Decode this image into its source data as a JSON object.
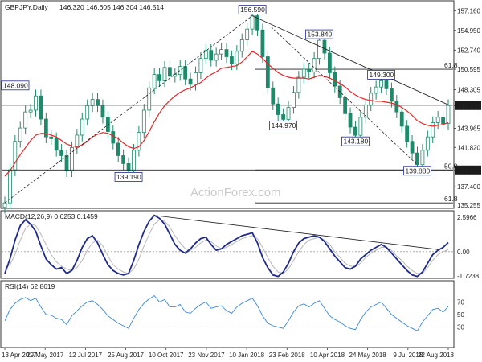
{
  "header": {
    "symbol": "GBPJPY,Daily",
    "ohlc": "146.320 146.605 146.304 146.514"
  },
  "watermark": "ActionForex.com",
  "colors": {
    "up_candle": "#1f8a6b",
    "down_candle": "#1f8a6b",
    "ma": "#e8262a",
    "trendline": "#222222",
    "fib": "#222222",
    "macd": "#1f2a8c",
    "signal": "#b7b7b7",
    "rsi": "#3a86d6",
    "label_border": "#1f2a8c",
    "price_tag_bg": "#1a1a1a",
    "price_tag_fg": "#ffffff"
  },
  "chart_data": [
    {
      "type": "line",
      "panel": "price",
      "ylim": [
        135.255,
        158.0
      ],
      "y_ticks": [
        137.4,
        139.29,
        141.82,
        143.965,
        146.514,
        148.305,
        150.595,
        152.74,
        154.95,
        157.16
      ],
      "y_tick_labels": [
        "137.400",
        "139.290",
        "141.820",
        "143.965",
        "146.514",
        "148.305",
        "150.595",
        "152.740",
        "154.950",
        "157.160"
      ],
      "y_bottom_label": "135.255",
      "x_labels": [
        "13 Apr 2017",
        "29 May 2017",
        "12 Jul 2017",
        "25 Aug 2017",
        "10 Oct 2017",
        "23 Nov 2017",
        "10 Jan 2018",
        "23 Feb 2018",
        "10 Apr 2018",
        "24 May 2018",
        "9 Jul 2018",
        "22 Aug 2018"
      ],
      "series": [
        {
          "name": "",
          "values": [
            135.6,
            139.3,
            142.5,
            144.0,
            145.8,
            146.0,
            147.6,
            145.0,
            143.0,
            142.8,
            141.5,
            140.9,
            139.2,
            141.8,
            143.2,
            145.0,
            146.5,
            147.2,
            146.5,
            145.2,
            143.6,
            142.3,
            140.9,
            140.0,
            139.2,
            141.5,
            143.5,
            146.0,
            148.5,
            150.0,
            149.3,
            150.8,
            149.8,
            150.0,
            150.9,
            149.5,
            148.9,
            150.2,
            151.8,
            152.7,
            151.6,
            152.3,
            152.8,
            152.0,
            151.2,
            152.6,
            153.9,
            155.1,
            156.59,
            155.0,
            152.0,
            148.5,
            146.7,
            145.5,
            144.97,
            146.3,
            148.0,
            149.7,
            150.6,
            150.3,
            151.8,
            153.84,
            152.4,
            150.2,
            148.7,
            147.4,
            145.6,
            144.1,
            143.18,
            145.2,
            146.6,
            147.9,
            148.6,
            149.3,
            148.4,
            147.0,
            145.8,
            144.2,
            142.5,
            141.2,
            139.88,
            141.5,
            143.0,
            144.6,
            145.2,
            144.5,
            146.514
          ]
        },
        {
          "name": "",
          "values": [
            138.6,
            139.2,
            140.1,
            141.0,
            141.8,
            142.6,
            143.2,
            143.4,
            143.4,
            143.2,
            143.0,
            142.6,
            142.2,
            142.0,
            141.9,
            142.1,
            142.5,
            143.0,
            143.3,
            143.5,
            143.4,
            143.1,
            142.8,
            142.3,
            141.9,
            141.7,
            141.9,
            142.6,
            143.6,
            144.7,
            145.7,
            146.5,
            147.1,
            147.6,
            148.0,
            148.3,
            148.5,
            148.8,
            149.1,
            149.6,
            150.0,
            150.3,
            150.7,
            150.8,
            150.9,
            151.0,
            151.4,
            152.0,
            152.6,
            152.3,
            151.8,
            151.2,
            150.7,
            150.2,
            149.9,
            149.7,
            149.6,
            149.6,
            149.6,
            149.5,
            149.7,
            149.9,
            149.8,
            149.6,
            149.3,
            149.0,
            148.6,
            148.1,
            147.7,
            147.4,
            147.2,
            147.1,
            147.0,
            147.0,
            146.9,
            146.8,
            146.6,
            146.3,
            145.9,
            145.4,
            144.8,
            144.5,
            144.3,
            144.2,
            144.3,
            144.4,
            144.6
          ]
        }
      ],
      "annotations": [
        {
          "label": "156.590",
          "x_index": 48,
          "y": 156.59
        },
        {
          "label": "153.840",
          "x_index": 61,
          "y": 153.84
        },
        {
          "label": "149.300",
          "x_index": 73,
          "y": 149.3
        },
        {
          "label": "144.970",
          "x_index": 54,
          "y": 144.97
        },
        {
          "label": "143.180",
          "x_index": 68,
          "y": 143.18
        },
        {
          "label": "139.880",
          "x_index": 80,
          "y": 139.88
        },
        {
          "label": "139.190",
          "x_index": 24,
          "y": 139.19
        },
        {
          "label": "148.090",
          "x_index": 0,
          "y": 148.09
        }
      ],
      "fib_levels": [
        {
          "label": "61.8",
          "y": 150.595
        },
        {
          "label": "50.0",
          "y": 139.29
        },
        {
          "label": "61.8",
          "y": 135.6
        }
      ],
      "last_price_label": "146.514",
      "support_label": "139.290"
    },
    {
      "type": "line",
      "panel": "macd",
      "title": "MACD(12,26,9) 0.6253 0.1459",
      "ylim": [
        -1.7238,
        2.5966
      ],
      "y_tick_labels": [
        "2.5966",
        "0.00",
        "-1.7238"
      ],
      "series": [
        {
          "name": "",
          "values": [
            -1.5,
            -0.5,
            0.8,
            1.8,
            2.2,
            1.9,
            1.4,
            0.4,
            -0.5,
            -0.9,
            -1.2,
            -1.1,
            -1.5,
            -1.3,
            -0.6,
            0.3,
            0.9,
            1.1,
            0.6,
            -0.2,
            -0.9,
            -1.3,
            -1.5,
            -1.6,
            -1.5,
            -0.6,
            0.5,
            1.4,
            2.1,
            2.5,
            2.3,
            1.9,
            1.2,
            0.5,
            0.1,
            -0.1,
            0.2,
            0.6,
            0.9,
            1.0,
            0.5,
            0.1,
            0.2,
            0.5,
            0.7,
            0.9,
            1.1,
            1.2,
            1.3,
            0.6,
            -0.4,
            -1.1,
            -1.6,
            -1.7,
            -1.4,
            -0.8,
            0.0,
            0.6,
            0.9,
            1.0,
            1.1,
            1.0,
            0.7,
            0.2,
            -0.3,
            -0.7,
            -1.1,
            -1.2,
            -1.0,
            -0.5,
            -0.2,
            0.1,
            0.3,
            0.5,
            0.3,
            -0.1,
            -0.5,
            -0.9,
            -1.3,
            -1.6,
            -1.7,
            -1.4,
            -0.8,
            -0.2,
            0.1,
            0.3,
            0.63
          ]
        },
        {
          "name": "",
          "values": [
            -1.2,
            -0.9,
            -0.2,
            0.8,
            1.6,
            1.9,
            1.8,
            1.2,
            0.5,
            -0.2,
            -0.7,
            -1.0,
            -1.2,
            -1.3,
            -1.1,
            -0.6,
            0.1,
            0.6,
            0.8,
            0.4,
            -0.3,
            -0.9,
            -1.2,
            -1.4,
            -1.5,
            -1.2,
            -0.5,
            0.4,
            1.2,
            1.9,
            2.2,
            2.1,
            1.7,
            1.1,
            0.6,
            0.2,
            0.1,
            0.3,
            0.6,
            0.8,
            0.7,
            0.4,
            0.2,
            0.3,
            0.5,
            0.7,
            0.9,
            1.0,
            1.1,
            0.9,
            0.3,
            -0.4,
            -1.0,
            -1.4,
            -1.5,
            -1.2,
            -0.6,
            0.0,
            0.5,
            0.8,
            0.9,
            1.0,
            0.8,
            0.5,
            0.0,
            -0.4,
            -0.8,
            -1.0,
            -1.0,
            -0.8,
            -0.4,
            -0.1,
            0.1,
            0.3,
            0.3,
            0.1,
            -0.3,
            -0.6,
            -1.0,
            -1.3,
            -1.5,
            -1.5,
            -1.1,
            -0.6,
            -0.2,
            0.0,
            0.15
          ]
        }
      ]
    },
    {
      "type": "line",
      "panel": "rsi",
      "title": "RSI(14) 62.8619",
      "ylim": [
        0,
        100
      ],
      "y_tick_labels": [
        "70",
        "50",
        "30"
      ],
      "series": [
        {
          "name": "",
          "values": [
            40,
            58,
            68,
            74,
            77,
            72,
            76,
            62,
            50,
            49,
            44,
            42,
            34,
            48,
            56,
            64,
            70,
            72,
            66,
            58,
            48,
            42,
            36,
            32,
            28,
            44,
            58,
            68,
            75,
            80,
            70,
            74,
            62,
            62,
            66,
            54,
            52,
            60,
            66,
            70,
            60,
            62,
            64,
            56,
            52,
            62,
            68,
            72,
            76,
            64,
            48,
            36,
            32,
            30,
            28,
            40,
            54,
            64,
            67,
            62,
            68,
            72,
            60,
            48,
            42,
            38,
            32,
            28,
            26,
            42,
            54,
            62,
            66,
            70,
            60,
            50,
            44,
            38,
            32,
            28,
            24,
            38,
            48,
            58,
            60,
            54,
            63
          ]
        }
      ]
    }
  ]
}
